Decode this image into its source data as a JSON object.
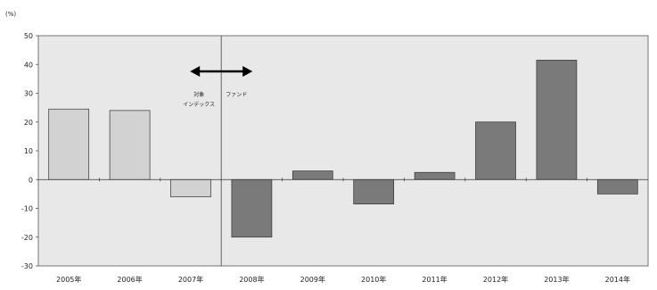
{
  "chart_data": {
    "type": "bar",
    "unit_label": "(%)",
    "categories": [
      "2005年",
      "2006年",
      "2007年",
      "2008年",
      "2009年",
      "2010年",
      "2011年",
      "2012年",
      "2013年",
      "2014年"
    ],
    "values": [
      24.5,
      24.0,
      -6.0,
      -20.0,
      3.0,
      -8.5,
      2.5,
      20.0,
      41.5,
      -5.0
    ],
    "ylim": [
      -30,
      50
    ],
    "yticks": [
      50,
      40,
      30,
      20,
      10,
      0,
      -10,
      -20,
      -30
    ],
    "grid": false,
    "divider_between": [
      "2007年",
      "2008年"
    ],
    "annotations": {
      "left_label_line1": "対象",
      "left_label_line2": "インデックス",
      "right_label": "ファンド"
    },
    "colors": {
      "plot_background": "#e8e8e8",
      "bar_index": "#d2d2d2",
      "bar_fund": "#7a7a7a",
      "bar_stroke": "#333333"
    }
  }
}
